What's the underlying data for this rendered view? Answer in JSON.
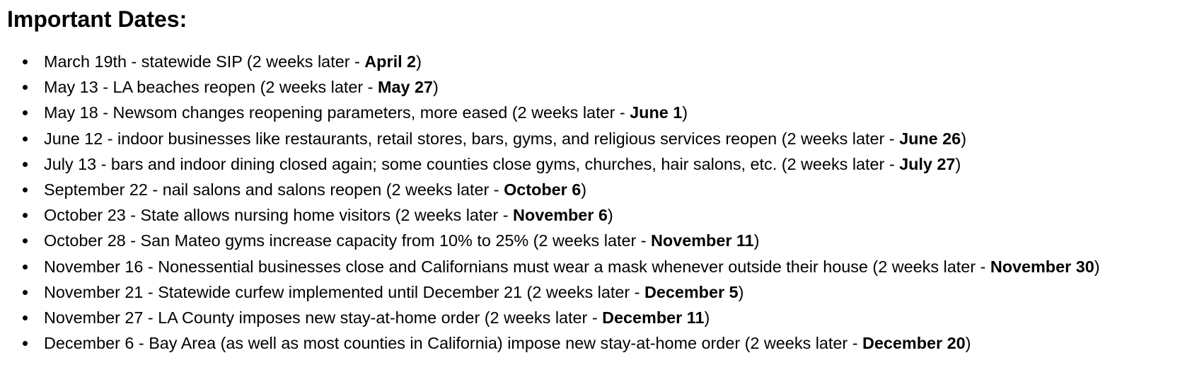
{
  "document": {
    "heading": "Important Dates:",
    "items": [
      {
        "text": "March 19th - statewide SIP (2 weeks later - ",
        "bold": "April 2",
        "close": ")"
      },
      {
        "text": "May 13 - LA beaches reopen (2 weeks later - ",
        "bold": "May 27",
        "close": ")"
      },
      {
        "text": "May 18 - Newsom changes reopening parameters, more eased (2 weeks later - ",
        "bold": "June 1",
        "close": ")"
      },
      {
        "text": "June 12 - indoor businesses like restaurants, retail stores, bars, gyms, and religious services reopen (2 weeks later - ",
        "bold": "June 26",
        "close": ")"
      },
      {
        "text": "July 13 - bars and indoor dining closed again; some counties close gyms, churches, hair salons, etc. (2 weeks later - ",
        "bold": "July 27",
        "close": ")"
      },
      {
        "text": "September 22 - nail salons and salons reopen (2 weeks later - ",
        "bold": "October 6",
        "close": ")"
      },
      {
        "text": "October 23 - State allows nursing home visitors (2 weeks later - ",
        "bold": "November 6",
        "close": ")"
      },
      {
        "text": "October 28 - San Mateo gyms increase capacity from 10% to 25% (2 weeks later - ",
        "bold": "November 11",
        "close": ")"
      },
      {
        "text": "November 16 - Nonessential businesses close and Californians must wear a mask whenever outside their house (2 weeks later - ",
        "bold": "November 30",
        "close": ")"
      },
      {
        "text": "November 21 - Statewide curfew implemented until December 21 (2 weeks later - ",
        "bold": "December 5",
        "close": ")"
      },
      {
        "text": "November 27 - LA County imposes new stay-at-home order (2 weeks later - ",
        "bold": "December 11",
        "close": ")"
      },
      {
        "text": "December 6 - Bay Area (as well as most counties in California) impose new stay-at-home order (2 weeks later - ",
        "bold": "December 20",
        "close": ")"
      }
    ]
  }
}
